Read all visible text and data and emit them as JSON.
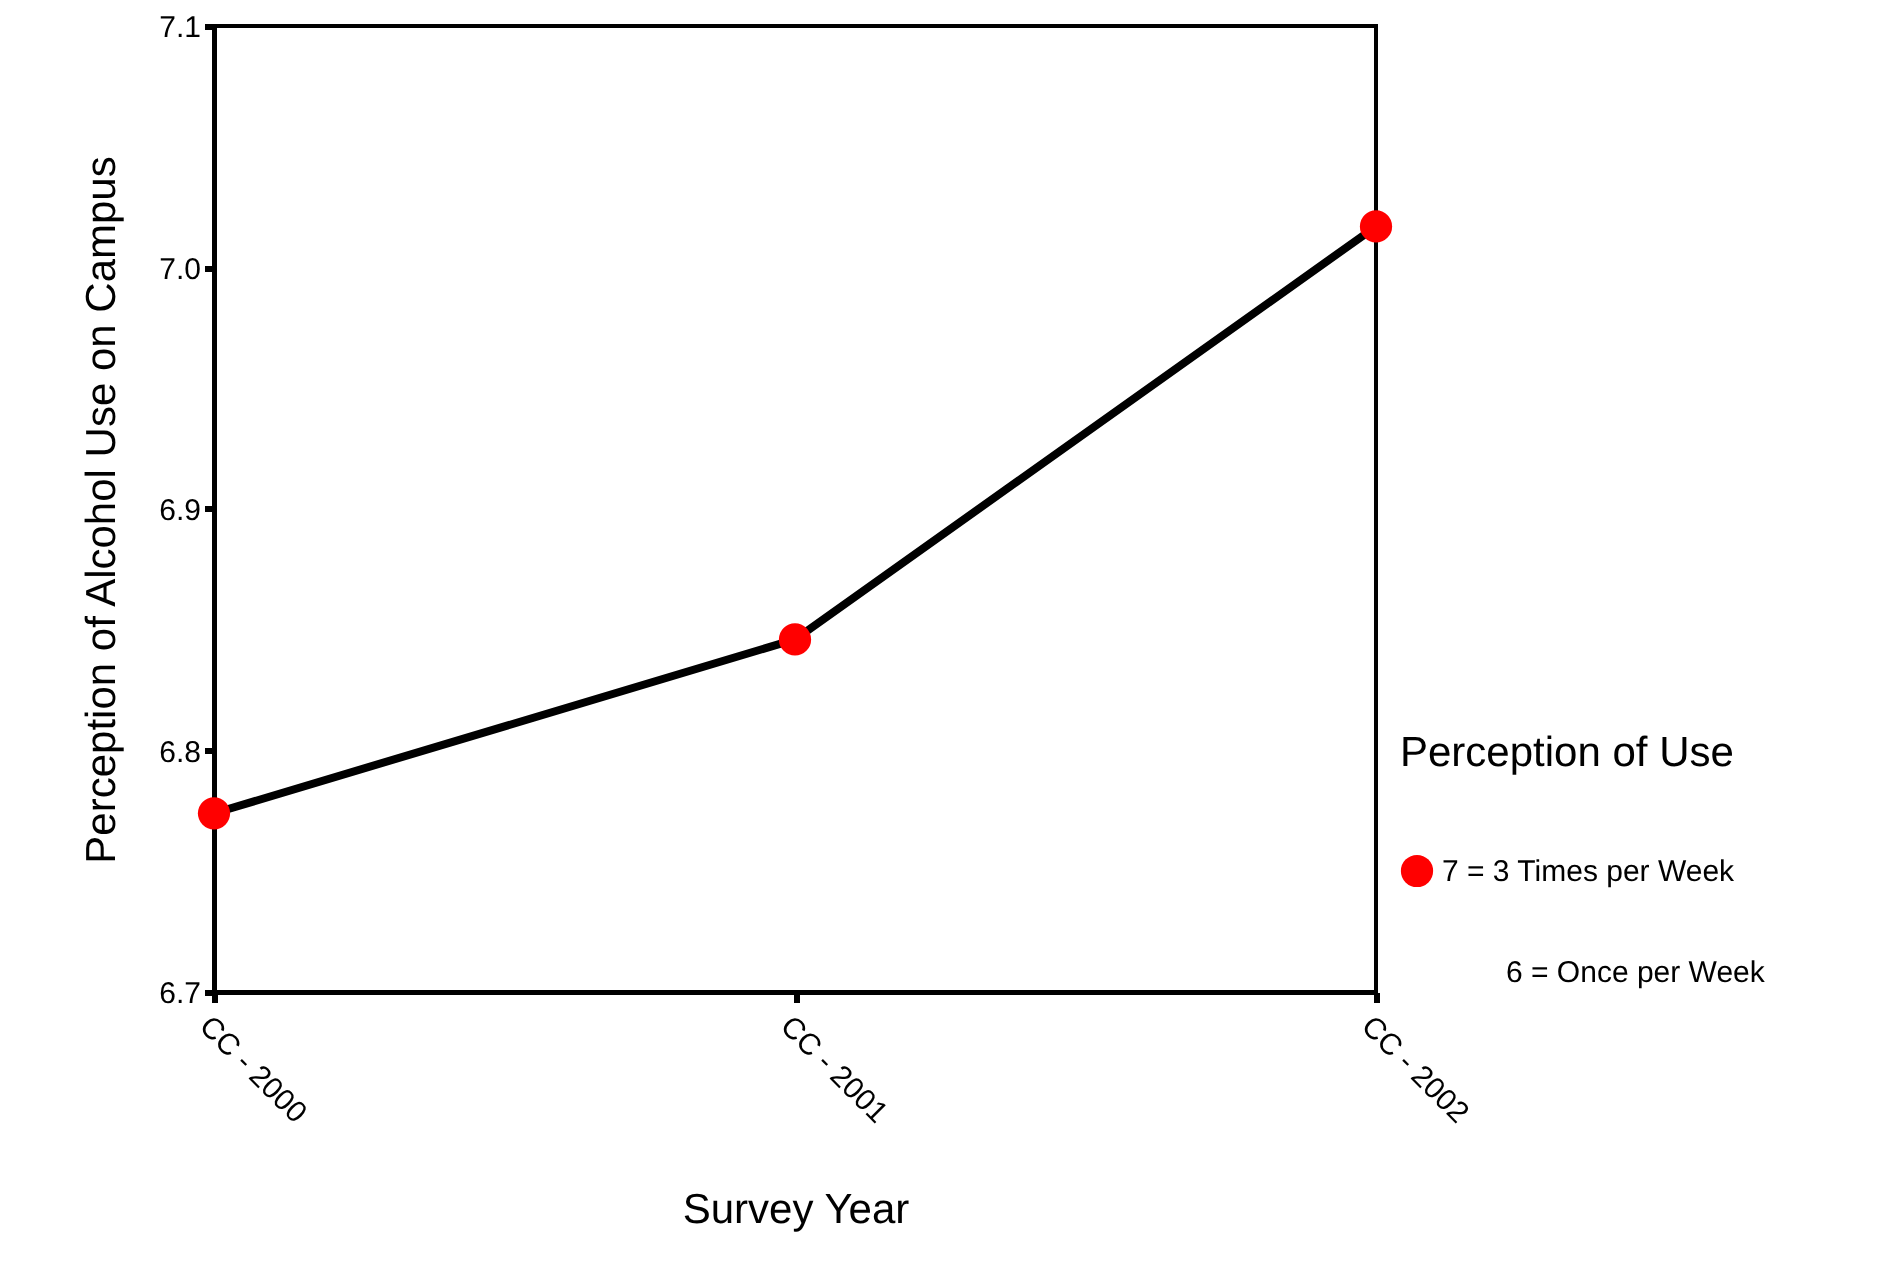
{
  "chart_data": {
    "type": "line",
    "xlabel": "Survey Year",
    "ylabel": "Perception of Alcohol Use on Campus",
    "legend_title": "Perception of Use",
    "categories": [
      "CC - 2000",
      "CC - 2001",
      "CC - 2002"
    ],
    "series": [
      {
        "name": "7 = 3 Times per Week",
        "color": "#000000",
        "colors": [
          "#ff0000",
          "#ff0000",
          "#ff0000"
        ],
        "values": [
          6.774,
          6.846,
          7.017
        ]
      }
    ],
    "annotations": [
      "6 = Once per Week"
    ],
    "ylim": [
      6.7,
      7.1
    ],
    "yticks": [
      6.7,
      6.8,
      6.9,
      {
        "value": 7.0,
        "label": "7.0"
      },
      7.1
    ],
    "marker": "circle",
    "legend": "right",
    "grid": false
  }
}
